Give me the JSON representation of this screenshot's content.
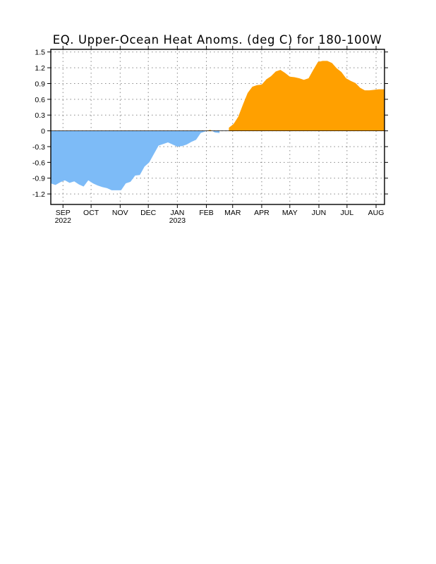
{
  "chart_data": {
    "type": "area",
    "title": "EQ. Upper-Ocean Heat Anoms. (deg C) for 180-100W",
    "xlabel": "",
    "ylabel": "",
    "ylim": [
      -1.4,
      1.55
    ],
    "y_ticks": [
      {
        "value": 1.5,
        "label": "1.5"
      },
      {
        "value": 1.2,
        "label": "1.2"
      },
      {
        "value": 0.9,
        "label": "0.9"
      },
      {
        "value": 0.6,
        "label": "0.6"
      },
      {
        "value": 0.3,
        "label": "0.3"
      },
      {
        "value": 0,
        "label": "0"
      },
      {
        "value": -0.3,
        "label": "-0.3"
      },
      {
        "value": -0.6,
        "label": "-0.6"
      },
      {
        "value": -0.9,
        "label": "-0.9"
      },
      {
        "value": -1.2,
        "label": "-1.2"
      }
    ],
    "x_start": "2022-08-19",
    "x_end": "2023-08-10",
    "x_ticks": [
      {
        "date": "2022-09-01",
        "label": "SEP",
        "sublabel": "2022"
      },
      {
        "date": "2022-10-01",
        "label": "OCT",
        "sublabel": ""
      },
      {
        "date": "2022-11-01",
        "label": "NOV",
        "sublabel": ""
      },
      {
        "date": "2022-12-01",
        "label": "DEC",
        "sublabel": ""
      },
      {
        "date": "2023-01-01",
        "label": "JAN",
        "sublabel": "2023"
      },
      {
        "date": "2023-02-01",
        "label": "FEB",
        "sublabel": ""
      },
      {
        "date": "2023-03-01",
        "label": "MAR",
        "sublabel": ""
      },
      {
        "date": "2023-04-01",
        "label": "APR",
        "sublabel": ""
      },
      {
        "date": "2023-05-01",
        "label": "MAY",
        "sublabel": ""
      },
      {
        "date": "2023-06-01",
        "label": "JUN",
        "sublabel": ""
      },
      {
        "date": "2023-07-01",
        "label": "JUL",
        "sublabel": ""
      },
      {
        "date": "2023-08-01",
        "label": "AUG",
        "sublabel": ""
      }
    ],
    "grid": true,
    "colors": {
      "positive": "#ffa000",
      "negative": "#7dbbf7",
      "grid": "#888888"
    },
    "series": [
      {
        "x": [
          "2022-08-19",
          "2022-08-24",
          "2022-08-29",
          "2022-09-03",
          "2022-09-08",
          "2022-09-13",
          "2022-09-18",
          "2022-09-23",
          "2022-09-28",
          "2022-10-03",
          "2022-10-08",
          "2022-10-13",
          "2022-10-18",
          "2022-10-23",
          "2022-10-28",
          "2022-11-02",
          "2022-11-07",
          "2022-11-12",
          "2022-11-17",
          "2022-11-22",
          "2022-11-27",
          "2022-12-02",
          "2022-12-07",
          "2022-12-12",
          "2022-12-17",
          "2022-12-22",
          "2022-12-27",
          "2023-01-01",
          "2023-01-06",
          "2023-01-11",
          "2023-01-16",
          "2023-01-21",
          "2023-01-26",
          "2023-01-31",
          "2023-02-05",
          "2023-02-10",
          "2023-02-15",
          "2023-02-20",
          "2023-02-25",
          "2023-03-02",
          "2023-03-07",
          "2023-03-12",
          "2023-03-17",
          "2023-03-22",
          "2023-03-27",
          "2023-04-01",
          "2023-04-06",
          "2023-04-11",
          "2023-04-16",
          "2023-04-21",
          "2023-04-26",
          "2023-05-01",
          "2023-05-06",
          "2023-05-11",
          "2023-05-16",
          "2023-05-21",
          "2023-05-26",
          "2023-05-31",
          "2023-06-05",
          "2023-06-10",
          "2023-06-15",
          "2023-06-20",
          "2023-06-25",
          "2023-06-30",
          "2023-07-05",
          "2023-07-10",
          "2023-07-15",
          "2023-07-20",
          "2023-07-25",
          "2023-07-30",
          "2023-08-04",
          "2023-08-10"
        ],
        "values": [
          -1.0,
          -1.03,
          -0.98,
          -0.94,
          -0.99,
          -0.96,
          -1.02,
          -1.06,
          -0.94,
          -1.0,
          -1.04,
          -1.07,
          -1.09,
          -1.13,
          -1.13,
          -1.13,
          -1.0,
          -0.97,
          -0.85,
          -0.84,
          -0.68,
          -0.6,
          -0.44,
          -0.28,
          -0.25,
          -0.22,
          -0.26,
          -0.3,
          -0.29,
          -0.26,
          -0.21,
          -0.17,
          -0.04,
          -0.01,
          0.02,
          -0.03,
          -0.04,
          0.0,
          0.06,
          0.13,
          0.27,
          0.5,
          0.72,
          0.84,
          0.87,
          0.88,
          0.98,
          1.04,
          1.13,
          1.16,
          1.1,
          1.03,
          1.02,
          1.0,
          0.97,
          1.0,
          1.16,
          1.31,
          1.33,
          1.33,
          1.29,
          1.19,
          1.12,
          1.0,
          0.95,
          0.91,
          0.82,
          0.77,
          0.77,
          0.78,
          0.79,
          0.79
        ]
      }
    ]
  }
}
